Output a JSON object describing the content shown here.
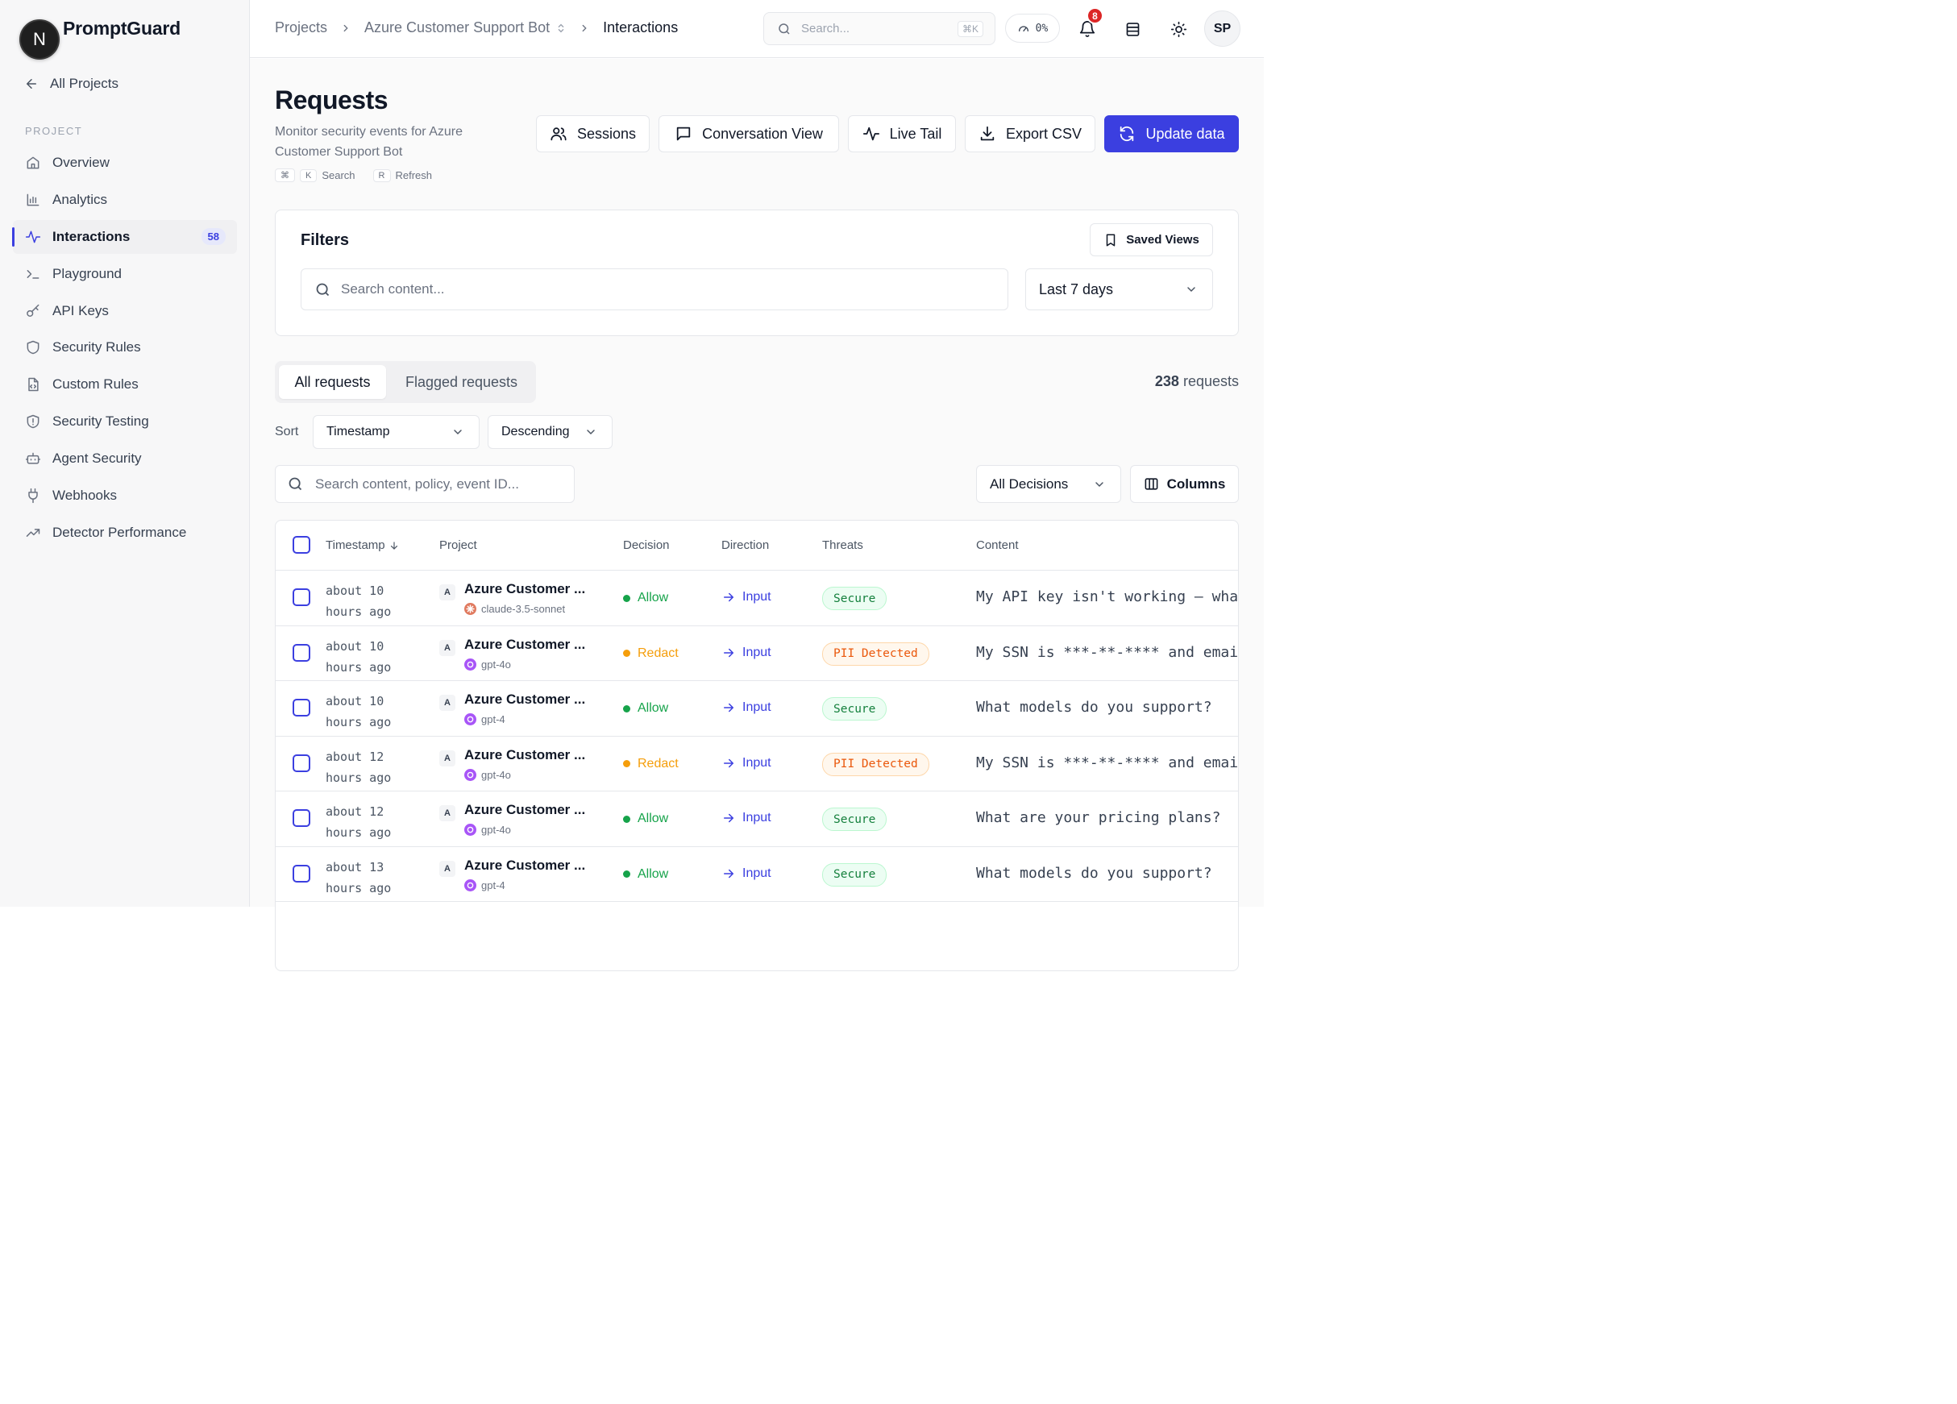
{
  "sidebar": {
    "brand": "PromptGuard",
    "logo_letter": "N",
    "back_label": "All Projects",
    "section_label": "PROJECT",
    "items": [
      {
        "label": "Overview",
        "icon": "home-icon"
      },
      {
        "label": "Analytics",
        "icon": "bar-chart-icon"
      },
      {
        "label": "Interactions",
        "icon": "activity-icon",
        "active": true,
        "count": "58"
      },
      {
        "label": "Playground",
        "icon": "terminal-icon"
      },
      {
        "label": "API Keys",
        "icon": "key-icon"
      },
      {
        "label": "Security Rules",
        "icon": "shield-icon"
      },
      {
        "label": "Custom Rules",
        "icon": "file-code-icon"
      },
      {
        "label": "Security Testing",
        "icon": "shield-alert-icon"
      },
      {
        "label": "Agent Security",
        "icon": "bot-icon"
      },
      {
        "label": "Webhooks",
        "icon": "plug-icon"
      },
      {
        "label": "Detector Performance",
        "icon": "trending-up-icon"
      }
    ]
  },
  "topbar": {
    "crumbs": [
      "Projects",
      "Azure Customer Support Bot",
      "Interactions"
    ],
    "search_placeholder": "Search...",
    "search_shortcut": "⌘K",
    "usage_pct": "0%",
    "notifications": "8",
    "avatar_initials": "SP"
  },
  "page": {
    "title": "Requests",
    "description": "Monitor security events for Azure Customer Support Bot",
    "hints": {
      "cmd": "⌘",
      "k": "K",
      "search": "Search",
      "r": "R",
      "refresh": "Refresh"
    },
    "actions": {
      "sessions": "Sessions",
      "conversation": "Conversation View",
      "live_tail": "Live Tail",
      "export": "Export CSV",
      "update": "Update data"
    }
  },
  "filters": {
    "title": "Filters",
    "saved_views": "Saved Views",
    "search_placeholder": "Search content...",
    "range": "Last 7 days"
  },
  "tabs": {
    "all": "All requests",
    "flagged": "Flagged requests"
  },
  "count": {
    "value": "238",
    "unit": "requests"
  },
  "sort": {
    "label": "Sort",
    "field": "Timestamp",
    "order": "Descending"
  },
  "table_search_placeholder": "Search content, policy, event ID...",
  "decision_filter": "All Decisions",
  "columns_label": "Columns",
  "table": {
    "headers": {
      "timestamp": "Timestamp",
      "project": "Project",
      "decision": "Decision",
      "direction": "Direction",
      "threats": "Threats",
      "content": "Content"
    },
    "rows": [
      {
        "time": "about 10\nhours ago",
        "project_badge": "A",
        "project": "Azure Customer ...",
        "model": "claude-3.5-sonnet",
        "model_kind": "claude",
        "decision": "Allow",
        "direction": "Input",
        "threat": "Secure",
        "threat_kind": "secure",
        "content": "My API key isn't working — wha"
      },
      {
        "time": "about 10\nhours ago",
        "project_badge": "A",
        "project": "Azure Customer ...",
        "model": "gpt-4o",
        "model_kind": "gpt",
        "decision": "Redact",
        "direction": "Input",
        "threat": "PII Detected",
        "threat_kind": "pii",
        "content": "My SSN is ***-**-**** and emai"
      },
      {
        "time": "about 10\nhours ago",
        "project_badge": "A",
        "project": "Azure Customer ...",
        "model": "gpt-4",
        "model_kind": "gpt",
        "decision": "Allow",
        "direction": "Input",
        "threat": "Secure",
        "threat_kind": "secure",
        "content": "What models do you support?"
      },
      {
        "time": "about 12\nhours ago",
        "project_badge": "A",
        "project": "Azure Customer ...",
        "model": "gpt-4o",
        "model_kind": "gpt",
        "decision": "Redact",
        "direction": "Input",
        "threat": "PII Detected",
        "threat_kind": "pii",
        "content": "My SSN is ***-**-**** and emai"
      },
      {
        "time": "about 12\nhours ago",
        "project_badge": "A",
        "project": "Azure Customer ...",
        "model": "gpt-4o",
        "model_kind": "gpt",
        "decision": "Allow",
        "direction": "Input",
        "threat": "Secure",
        "threat_kind": "secure",
        "content": "What are your pricing plans?"
      },
      {
        "time": "about 13\nhours ago",
        "project_badge": "A",
        "project": "Azure Customer ...",
        "model": "gpt-4",
        "model_kind": "gpt",
        "decision": "Allow",
        "direction": "Input",
        "threat": "Secure",
        "threat_kind": "secure",
        "content": "What models do you support?"
      }
    ]
  },
  "colors": {
    "accent": "#3b3fe0",
    "allow": "#16a34a",
    "redact": "#f59e0b",
    "claude": "#e07a5f",
    "gpt": "#a855f7"
  }
}
